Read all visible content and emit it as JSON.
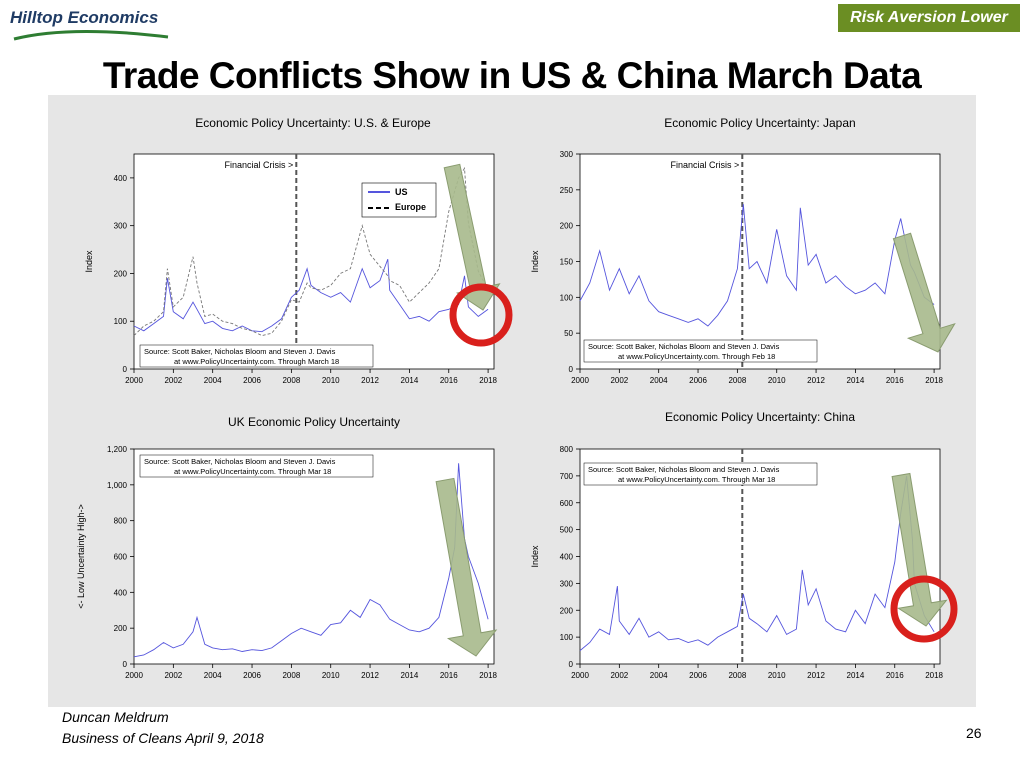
{
  "header": {
    "logo_text": "Hilltop Economics",
    "badge_text": "Risk Aversion Lower",
    "title": "Trade Conflicts Show in US & China March Data"
  },
  "footer": {
    "author": "Duncan Meldrum",
    "date_line": "Business of Cleans April 9, 2018",
    "page_number": "26"
  },
  "colors": {
    "us_series": "#5555dd",
    "dashed_series": "#777777",
    "arrow_fill": "#a7b98c",
    "circle": "#d9201c",
    "badge": "#6b8e23"
  },
  "chart_data": [
    {
      "type": "line",
      "title": "Economic Policy Uncertainty: U.S. & Europe",
      "ylabel": "Index",
      "xlim": [
        2000,
        2018.3
      ],
      "ylim": [
        0,
        450
      ],
      "yticks": [
        0,
        100,
        200,
        300,
        400
      ],
      "xticks": [
        "2000",
        "2002",
        "2004",
        "2006",
        "2008",
        "2010",
        "2012",
        "2014",
        "2016",
        "2018"
      ],
      "legend": [
        "US",
        "Europe"
      ],
      "legend_position": "top-right",
      "vline": {
        "x": 2008.25,
        "label": "Financial Crisis >"
      },
      "source": [
        "Source: Scott Baker, Nicholas Bloom and  Steven  J. Davis",
        "at www.PolicyUncertainty.com. Through March 18"
      ],
      "series": [
        {
          "name": "US",
          "style": "solid",
          "x": [
            2000,
            2000.5,
            2001,
            2001.5,
            2001.7,
            2002,
            2002.5,
            2003,
            2003.2,
            2003.6,
            2004,
            2004.5,
            2005,
            2005.5,
            2006,
            2006.5,
            2007,
            2007.5,
            2008,
            2008.4,
            2008.8,
            2009,
            2009.5,
            2010,
            2010.5,
            2011,
            2011.6,
            2012,
            2012.5,
            2012.9,
            2013,
            2013.5,
            2014,
            2014.5,
            2015,
            2015.5,
            2016,
            2016.5,
            2016.8,
            2017,
            2017.5,
            2018
          ],
          "y": [
            90,
            80,
            95,
            110,
            190,
            120,
            105,
            140,
            125,
            95,
            100,
            85,
            80,
            90,
            80,
            78,
            90,
            105,
            150,
            165,
            210,
            175,
            160,
            150,
            160,
            140,
            210,
            170,
            185,
            230,
            165,
            135,
            105,
            110,
            100,
            120,
            125,
            135,
            195,
            130,
            110,
            125
          ]
        },
        {
          "name": "Europe",
          "style": "dashed",
          "x": [
            2000,
            2000.5,
            2001,
            2001.5,
            2001.7,
            2002,
            2002.5,
            2003,
            2003.2,
            2003.6,
            2004,
            2004.5,
            2005,
            2005.5,
            2006,
            2006.5,
            2007,
            2007.5,
            2008,
            2008.4,
            2008.8,
            2009,
            2009.5,
            2010,
            2010.5,
            2011,
            2011.6,
            2012,
            2012.5,
            2012.9,
            2013,
            2013.5,
            2014,
            2014.5,
            2015,
            2015.5,
            2016,
            2016.5,
            2016.8,
            2017,
            2017.5,
            2018
          ],
          "y": [
            70,
            90,
            100,
            120,
            210,
            130,
            150,
            235,
            180,
            110,
            115,
            100,
            95,
            85,
            80,
            70,
            75,
            100,
            145,
            140,
            180,
            170,
            165,
            175,
            200,
            210,
            300,
            240,
            215,
            195,
            185,
            175,
            140,
            160,
            180,
            210,
            330,
            400,
            420,
            305,
            205,
            165
          ]
        }
      ]
    },
    {
      "type": "line",
      "title": "Economic Policy Uncertainty: Japan",
      "ylabel": "Index",
      "xlim": [
        2000,
        2018.3
      ],
      "ylim": [
        0,
        300
      ],
      "yticks": [
        0,
        50,
        100,
        150,
        200,
        250,
        300
      ],
      "xticks": [
        "2000",
        "2002",
        "2004",
        "2006",
        "2008",
        "2010",
        "2012",
        "2014",
        "2016",
        "2018"
      ],
      "vline": {
        "x": 2008.25,
        "label": "Financial Crisis >"
      },
      "source": [
        "Source: Scott Baker, Nicholas Bloom and  Steven  J. Davis",
        "at www.PolicyUncertainty.com. Through Feb 18"
      ],
      "series": [
        {
          "style": "solid",
          "x": [
            2000,
            2000.5,
            2001,
            2001.5,
            2002,
            2002.5,
            2003,
            2003.5,
            2004,
            2004.5,
            2005,
            2005.5,
            2006,
            2006.5,
            2007,
            2007.5,
            2008,
            2008.3,
            2008.6,
            2009,
            2009.5,
            2010,
            2010.5,
            2011,
            2011.2,
            2011.6,
            2012,
            2012.5,
            2013,
            2013.5,
            2014,
            2014.5,
            2015,
            2015.5,
            2016,
            2016.3,
            2016.8,
            2017,
            2017.5,
            2018
          ],
          "y": [
            95,
            120,
            165,
            110,
            140,
            105,
            130,
            95,
            80,
            75,
            70,
            65,
            70,
            60,
            75,
            95,
            140,
            230,
            140,
            150,
            120,
            195,
            130,
            110,
            225,
            145,
            160,
            120,
            130,
            115,
            105,
            110,
            120,
            105,
            180,
            210,
            145,
            135,
            100,
            90
          ]
        }
      ]
    },
    {
      "type": "line",
      "title": "UK Economic Policy Uncertainty",
      "ylabel": "<- Low   Uncertainty   High->",
      "xlim": [
        2000,
        2018.3
      ],
      "ylim": [
        0,
        1200
      ],
      "yticks": [
        0,
        200,
        400,
        600,
        800,
        1000,
        1200
      ],
      "ytick_labels": [
        "0",
        "200",
        "400",
        "600",
        "800",
        "1,000",
        "1,200"
      ],
      "xticks": [
        "2000",
        "2002",
        "2004",
        "2006",
        "2008",
        "2010",
        "2012",
        "2014",
        "2016",
        "2018"
      ],
      "source": [
        "Source: Scott Baker, Nicholas Bloom and  Steven  J. Davis",
        "at www.PolicyUncertainty.com. Through Mar 18"
      ],
      "series": [
        {
          "style": "solid",
          "x": [
            2000,
            2000.5,
            2001,
            2001.5,
            2002,
            2002.5,
            2003,
            2003.2,
            2003.6,
            2004,
            2004.5,
            2005,
            2005.5,
            2006,
            2006.5,
            2007,
            2007.5,
            2008,
            2008.5,
            2009,
            2009.5,
            2010,
            2010.5,
            2011,
            2011.5,
            2012,
            2012.5,
            2013,
            2013.5,
            2014,
            2014.5,
            2015,
            2015.5,
            2016,
            2016.3,
            2016.5,
            2016.8,
            2017,
            2017.5,
            2018
          ],
          "y": [
            40,
            50,
            80,
            120,
            90,
            110,
            180,
            260,
            110,
            90,
            80,
            85,
            70,
            80,
            75,
            90,
            130,
            170,
            200,
            180,
            160,
            220,
            230,
            300,
            260,
            360,
            330,
            250,
            220,
            190,
            180,
            200,
            260,
            480,
            650,
            1120,
            700,
            600,
            450,
            250
          ]
        }
      ]
    },
    {
      "type": "line",
      "title": "Economic Policy Uncertainty: China",
      "ylabel": "Index",
      "xlim": [
        2000,
        2018.3
      ],
      "ylim": [
        0,
        800
      ],
      "yticks": [
        0,
        100,
        200,
        300,
        400,
        500,
        600,
        700,
        800
      ],
      "xticks": [
        "2000",
        "2002",
        "2004",
        "2006",
        "2008",
        "2010",
        "2012",
        "2014",
        "2016",
        "2018"
      ],
      "vline": {
        "x": 2008.25
      },
      "source": [
        "Source: Scott Baker, Nicholas Bloom and  Steven  J. Davis",
        "at www.PolicyUncertainty.com. Through Mar 18"
      ],
      "series": [
        {
          "style": "solid",
          "x": [
            2000,
            2000.5,
            2001,
            2001.5,
            2001.9,
            2002,
            2002.5,
            2003,
            2003.5,
            2004,
            2004.5,
            2005,
            2005.5,
            2006,
            2006.5,
            2007,
            2007.5,
            2008,
            2008.3,
            2008.6,
            2009,
            2009.5,
            2010,
            2010.5,
            2011,
            2011.3,
            2011.6,
            2012,
            2012.5,
            2013,
            2013.5,
            2014,
            2014.5,
            2015,
            2015.5,
            2016,
            2016.3,
            2016.6,
            2016.9,
            2017,
            2017.5,
            2018
          ],
          "y": [
            50,
            80,
            130,
            110,
            290,
            160,
            110,
            170,
            100,
            120,
            90,
            95,
            80,
            90,
            70,
            100,
            120,
            140,
            260,
            170,
            150,
            120,
            180,
            110,
            130,
            350,
            220,
            280,
            160,
            130,
            120,
            200,
            150,
            260,
            210,
            380,
            560,
            700,
            460,
            300,
            180,
            120
          ]
        }
      ]
    }
  ]
}
